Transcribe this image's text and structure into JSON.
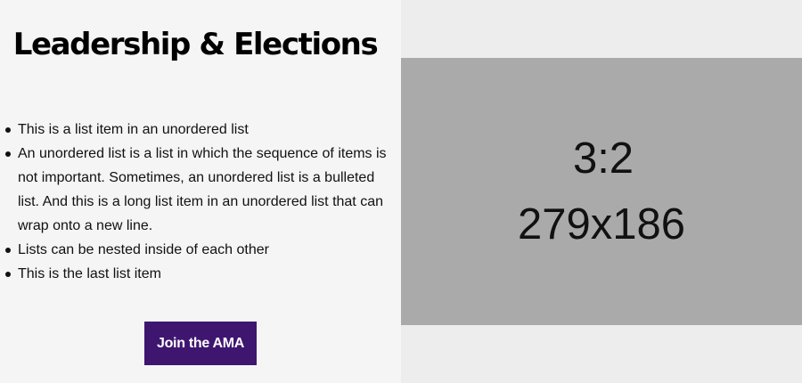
{
  "section": {
    "heading": "Leadership & Elections",
    "list_items": [
      "This is a list item in an unordered list",
      "An unordered list is a list in which the sequence of items is not important. Sometimes, an unordered list is a bulleted list. And this is a long list item in an unordered list that can wrap onto a new line.",
      "Lists can be nested inside of each other",
      "This is the last list item"
    ],
    "cta_label": "Join the AMA",
    "cta_color": "#3e1670"
  },
  "image_placeholder": {
    "ratio_text": "3:2",
    "size_text": "279x186",
    "background": "#aaaaaa"
  }
}
